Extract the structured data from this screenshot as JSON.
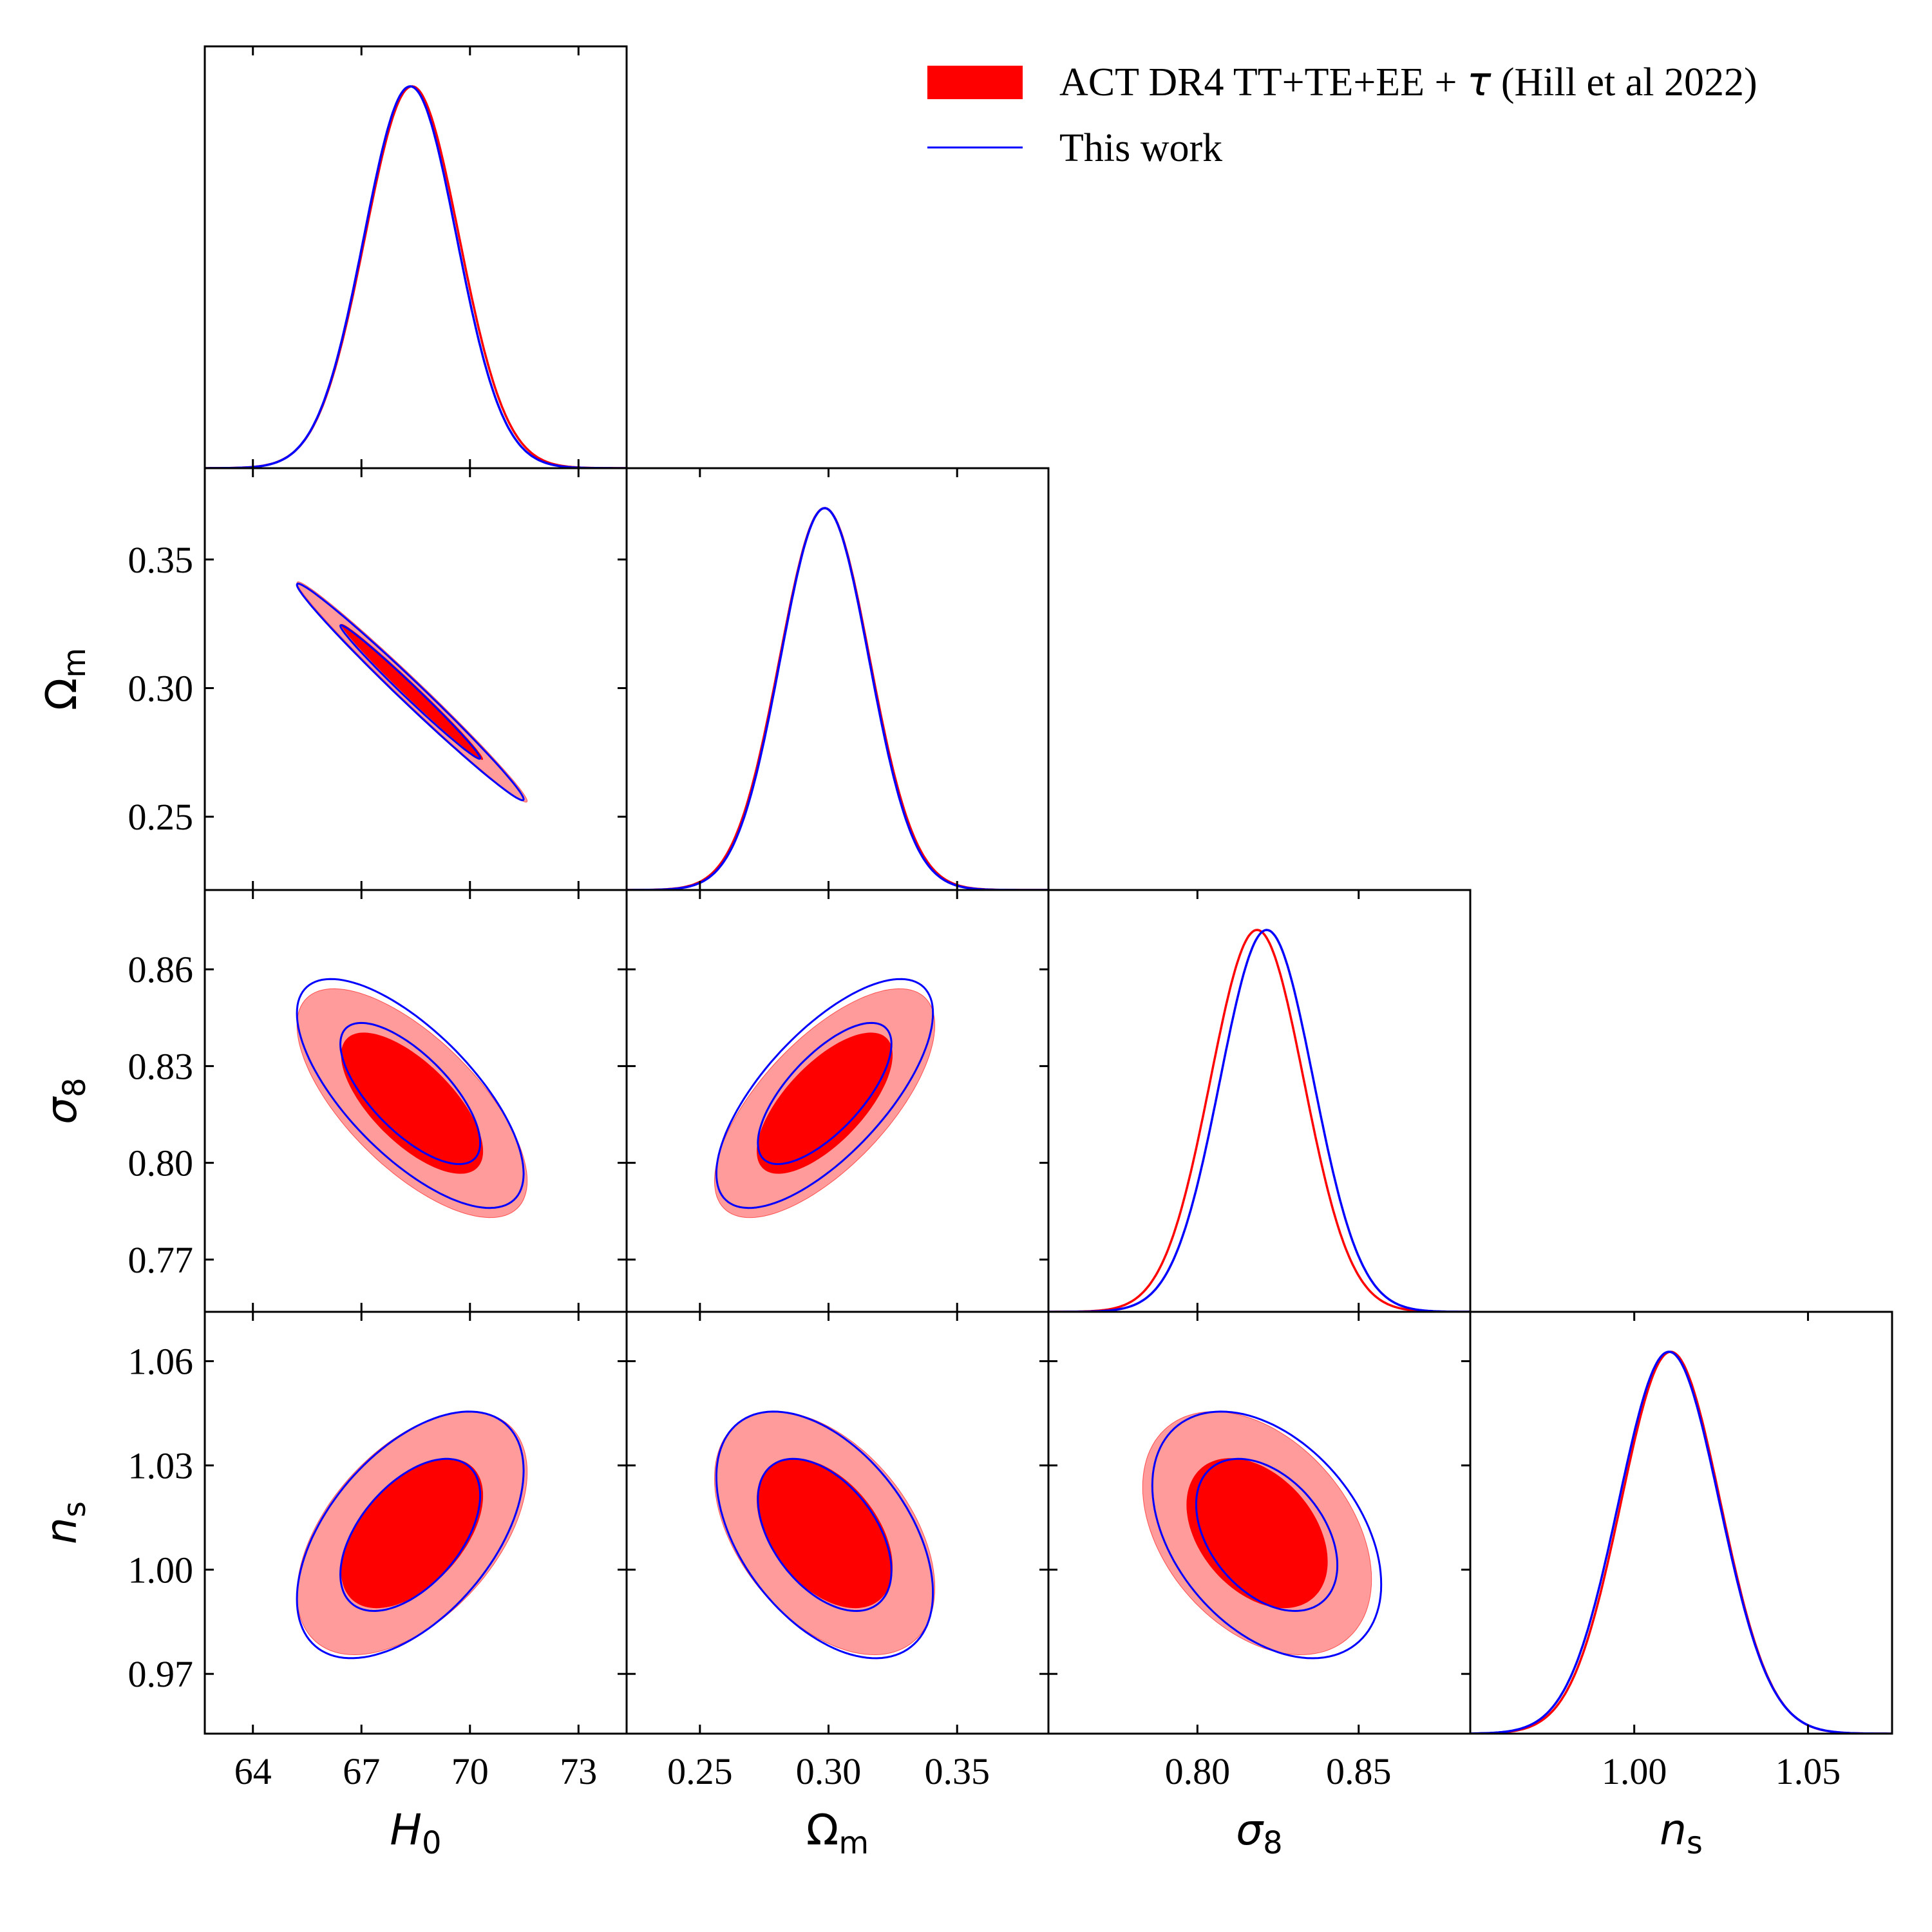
{
  "chart_data": {
    "type": "corner",
    "parameters": [
      {
        "key": "H0",
        "label_base": "H",
        "label_sub": "0",
        "base_italic": true,
        "sub_italic": false,
        "range": [
          62.67,
          74.33
        ],
        "ticks": [
          64,
          67,
          70,
          73
        ],
        "tick_labels": [
          "64",
          "67",
          "70",
          "73"
        ]
      },
      {
        "key": "Om",
        "label_base": "Ω",
        "label_sub": "m",
        "base_italic": false,
        "sub_italic": false,
        "range": [
          0.2215,
          0.3855
        ],
        "ticks": [
          0.25,
          0.3,
          0.35
        ],
        "tick_labels": [
          "0.25",
          "0.30",
          "0.35"
        ]
      },
      {
        "key": "s8",
        "label_base": "σ",
        "label_sub": "8",
        "base_italic": true,
        "sub_italic": false,
        "range": [
          0.7538,
          0.8846
        ],
        "ticks": [
          0.77,
          0.8,
          0.83,
          0.86
        ],
        "tick_labels": [
          "0.77",
          "0.80",
          "0.83",
          "0.86"
        ],
        "x_ticks": [
          0.8,
          0.85
        ],
        "x_tick_labels": [
          "0.80",
          "0.85"
        ]
      },
      {
        "key": "ns",
        "label_base": "n",
        "label_sub": "s",
        "base_italic": true,
        "sub_italic": false,
        "range": [
          0.9528,
          1.0742
        ],
        "ticks": [
          0.97,
          1.0,
          1.03,
          1.06
        ],
        "tick_labels": [
          "0.97",
          "1.00",
          "1.03",
          "1.06"
        ],
        "x_ticks": [
          1.0,
          1.05
        ],
        "x_tick_labels": [
          "1.00",
          "1.05"
        ]
      }
    ],
    "series": [
      {
        "name": "ACT DR4 TT+TE+EE + τ (Hill et al 2022)",
        "legend_main": "ACT DR4 TT+TE+EE + ",
        "legend_symbol": "τ",
        "legend_tail": " (Hill et al 2022)",
        "style": "filled",
        "color": "#ff0000",
        "outer_fill": "#ff9b9b",
        "means": {
          "H0": 68.4,
          "Om": 0.2985,
          "s8": 0.8185,
          "ns": 1.0105
        },
        "sigmas": {
          "H0": 1.3,
          "Om": 0.0175,
          "s8": 0.0145,
          "ns": 0.0143
        },
        "correlations": {
          "H0-Om": -0.99,
          "H0-s8": -0.68,
          "Om-s8": 0.68,
          "H0-ns": 0.5,
          "Om-ns": -0.45,
          "s8-ns": -0.38
        }
      },
      {
        "name": "This work",
        "legend_main": "This work",
        "legend_symbol": "",
        "legend_tail": "",
        "style": "line",
        "color": "#0000ff",
        "means": {
          "H0": 68.35,
          "Om": 0.2985,
          "s8": 0.8215,
          "ns": 1.01
        },
        "sigmas": {
          "H0": 1.28,
          "Om": 0.0172,
          "s8": 0.0145,
          "ns": 0.0145
        },
        "correlations": {
          "H0-Om": -0.99,
          "H0-s8": -0.7,
          "Om-s8": 0.7,
          "H0-ns": 0.52,
          "Om-ns": -0.47,
          "s8-ns": -0.4
        }
      }
    ],
    "contour_levels": [
      "68%",
      "95%"
    ],
    "legend_placement": "top-right",
    "grid": false
  }
}
